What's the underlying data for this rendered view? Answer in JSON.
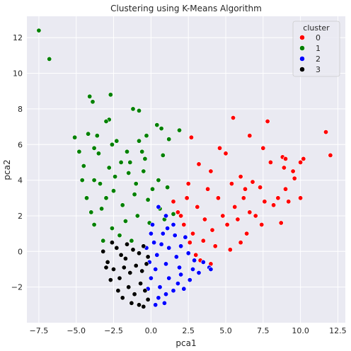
{
  "chart_data": {
    "type": "scatter",
    "title": "Clustering using K-Means Algorithm",
    "xlabel": "pca1",
    "ylabel": "pca2",
    "xlim": [
      -8.3,
      13.0
    ],
    "ylim": [
      -4.0,
      13.2
    ],
    "xticks": [
      -7.5,
      -5.0,
      -2.5,
      0.0,
      2.5,
      5.0,
      7.5,
      10.0,
      12.5
    ],
    "xtick_labels": [
      "−7.5",
      "−5.0",
      "−2.5",
      "0.0",
      "2.5",
      "5.0",
      "7.5",
      "10.0",
      "12.5"
    ],
    "yticks": [
      -2,
      0,
      2,
      4,
      6,
      8,
      10,
      12
    ],
    "ytick_labels": [
      "−2",
      "0",
      "2",
      "4",
      "6",
      "8",
      "10",
      "12"
    ],
    "grid": true,
    "background": "#eaeaf2",
    "legend": {
      "title": "cluster",
      "position": "top-right",
      "entries": [
        "0",
        "1",
        "2",
        "3"
      ]
    },
    "series": [
      {
        "name": "0",
        "color": "#ff0000",
        "points": [
          [
            2.7,
            6.4
          ],
          [
            5.5,
            7.5
          ],
          [
            6.6,
            6.5
          ],
          [
            7.8,
            7.3
          ],
          [
            11.7,
            6.7
          ],
          [
            12.0,
            5.4
          ],
          [
            4.6,
            5.8
          ],
          [
            5.0,
            5.5
          ],
          [
            7.5,
            5.8
          ],
          [
            8.8,
            5.3
          ],
          [
            9.0,
            5.2
          ],
          [
            10.2,
            5.2
          ],
          [
            10.0,
            5.0
          ],
          [
            9.5,
            4.5
          ],
          [
            8.0,
            5.0
          ],
          [
            8.9,
            4.7
          ],
          [
            9.6,
            4.1
          ],
          [
            3.2,
            4.9
          ],
          [
            2.5,
            3.8
          ],
          [
            4.0,
            4.5
          ],
          [
            6.0,
            4.2
          ],
          [
            6.8,
            3.9
          ],
          [
            7.3,
            3.6
          ],
          [
            8.5,
            3.0
          ],
          [
            9.2,
            2.8
          ],
          [
            10.0,
            3.0
          ],
          [
            9.0,
            3.5
          ],
          [
            8.2,
            2.6
          ],
          [
            8.7,
            1.6
          ],
          [
            7.4,
            1.5
          ],
          [
            6.4,
            1.0
          ],
          [
            6.0,
            0.5
          ],
          [
            5.3,
            0.1
          ],
          [
            3.3,
            -0.5
          ],
          [
            3.0,
            -0.2
          ],
          [
            4.0,
            -0.7
          ],
          [
            2.6,
            0.5
          ],
          [
            1.5,
            2.8
          ],
          [
            1.8,
            2.2
          ],
          [
            2.2,
            1.5
          ],
          [
            2.8,
            1.0
          ],
          [
            3.5,
            0.6
          ],
          [
            4.3,
            0.3
          ],
          [
            4.8,
            2.0
          ],
          [
            5.6,
            2.5
          ],
          [
            6.2,
            3.0
          ],
          [
            7.0,
            2.0
          ],
          [
            3.8,
            3.5
          ],
          [
            4.5,
            3.0
          ],
          [
            2.4,
            3.0
          ],
          [
            3.1,
            2.5
          ],
          [
            3.6,
            1.8
          ],
          [
            4.1,
            1.2
          ],
          [
            5.1,
            1.5
          ],
          [
            5.8,
            1.8
          ],
          [
            6.6,
            2.2
          ],
          [
            7.6,
            2.8
          ],
          [
            5.4,
            3.8
          ],
          [
            6.3,
            3.5
          ],
          [
            2.0,
            2.0
          ]
        ]
      },
      {
        "name": "1",
        "color": "#008000",
        "points": [
          [
            -7.5,
            12.4
          ],
          [
            -6.8,
            10.8
          ],
          [
            -4.1,
            8.7
          ],
          [
            -2.7,
            8.8
          ],
          [
            -3.9,
            8.4
          ],
          [
            -1.2,
            8.0
          ],
          [
            -0.8,
            7.9
          ],
          [
            -2.8,
            7.4
          ],
          [
            -3.0,
            7.3
          ],
          [
            0.4,
            7.1
          ],
          [
            -0.8,
            6.2
          ],
          [
            -5.1,
            6.4
          ],
          [
            -4.2,
            6.6
          ],
          [
            -3.6,
            6.5
          ],
          [
            -0.3,
            6.5
          ],
          [
            0.7,
            6.9
          ],
          [
            1.9,
            6.8
          ],
          [
            1.2,
            6.3
          ],
          [
            -4.8,
            5.6
          ],
          [
            -4.5,
            4.8
          ],
          [
            -3.5,
            5.5
          ],
          [
            -2.3,
            6.2
          ],
          [
            -1.6,
            5.6
          ],
          [
            -0.6,
            5.6
          ],
          [
            -3.8,
            4.0
          ],
          [
            -2.8,
            4.7
          ],
          [
            -1.5,
            4.4
          ],
          [
            -0.5,
            4.5
          ],
          [
            0.5,
            4.0
          ],
          [
            1.1,
            3.6
          ],
          [
            -4.3,
            3.0
          ],
          [
            -3.3,
            2.4
          ],
          [
            -2.5,
            3.4
          ],
          [
            -1.9,
            2.6
          ],
          [
            -1.1,
            3.2
          ],
          [
            -0.2,
            2.9
          ],
          [
            0.6,
            2.4
          ],
          [
            -3.8,
            1.5
          ],
          [
            -3.2,
            0.6
          ],
          [
            -2.6,
            1.3
          ],
          [
            -1.7,
            1.7
          ],
          [
            -0.9,
            2.0
          ],
          [
            -0.1,
            1.6
          ],
          [
            0.9,
            1.8
          ],
          [
            1.5,
            2.1
          ],
          [
            -2.1,
            0.9
          ],
          [
            -1.3,
            0.6
          ],
          [
            -2.4,
            4.2
          ],
          [
            -1.0,
            3.8
          ],
          [
            0.1,
            3.5
          ],
          [
            -3.0,
            3.0
          ],
          [
            -4.0,
            2.2
          ],
          [
            -2.0,
            5.0
          ],
          [
            -1.4,
            5.0
          ],
          [
            -3.4,
            3.8
          ],
          [
            -4.6,
            4.0
          ],
          [
            -0.4,
            5.2
          ],
          [
            0.8,
            5.4
          ],
          [
            -2.6,
            6.0
          ],
          [
            -3.8,
            5.8
          ]
        ]
      },
      {
        "name": "2",
        "color": "#0000ff",
        "points": [
          [
            0.5,
            2.5
          ],
          [
            1.0,
            2.0
          ],
          [
            1.5,
            1.5
          ],
          [
            0.8,
            1.0
          ],
          [
            0.2,
            0.5
          ],
          [
            1.2,
            0.2
          ],
          [
            2.0,
            0.3
          ],
          [
            1.7,
            -0.3
          ],
          [
            1.0,
            -0.7
          ],
          [
            0.3,
            -1.0
          ],
          [
            0.0,
            -1.5
          ],
          [
            0.6,
            -2.0
          ],
          [
            1.2,
            -1.5
          ],
          [
            2.0,
            -1.3
          ],
          [
            2.8,
            -1.0
          ],
          [
            3.5,
            -0.6
          ],
          [
            2.5,
            -0.1
          ],
          [
            1.5,
            -2.2
          ],
          [
            0.5,
            -2.6
          ],
          [
            -0.2,
            -2.1
          ],
          [
            -0.1,
            -0.6
          ],
          [
            0.4,
            -0.2
          ],
          [
            2.2,
            -2.1
          ],
          [
            0.9,
            -2.9
          ],
          [
            0.3,
            -3.0
          ],
          [
            3.9,
            -0.9
          ],
          [
            4.0,
            -1.0
          ],
          [
            1.6,
            0.9
          ],
          [
            1.1,
            1.3
          ],
          [
            0.1,
            1.5
          ],
          [
            0.0,
            1.0
          ],
          [
            2.3,
            0.8
          ],
          [
            2.9,
            -0.5
          ],
          [
            3.2,
            -1.2
          ],
          [
            1.8,
            -1.8
          ],
          [
            1.0,
            -2.4
          ],
          [
            -0.3,
            0.2
          ],
          [
            0.7,
            0.4
          ],
          [
            1.9,
            -0.9
          ],
          [
            2.6,
            -1.6
          ]
        ]
      },
      {
        "name": "3",
        "color": "#000000",
        "points": [
          [
            -3.2,
            0.0
          ],
          [
            -2.9,
            -0.6
          ],
          [
            -2.6,
            0.5
          ],
          [
            -2.3,
            0.2
          ],
          [
            -2.0,
            -0.2
          ],
          [
            -1.6,
            0.4
          ],
          [
            -1.2,
            0.1
          ],
          [
            -0.8,
            -0.1
          ],
          [
            -0.5,
            0.3
          ],
          [
            -0.2,
            -0.3
          ],
          [
            -2.5,
            -1.0
          ],
          [
            -2.1,
            -1.5
          ],
          [
            -1.8,
            -0.9
          ],
          [
            -1.4,
            -1.2
          ],
          [
            -1.0,
            -0.8
          ],
          [
            -0.6,
            -1.1
          ],
          [
            -0.3,
            -0.7
          ],
          [
            -2.2,
            -2.2
          ],
          [
            -1.9,
            -2.6
          ],
          [
            -1.5,
            -2.0
          ],
          [
            -1.1,
            -2.4
          ],
          [
            -0.7,
            -1.8
          ],
          [
            -0.4,
            -2.2
          ],
          [
            -1.3,
            -2.9
          ],
          [
            -0.8,
            -3.0
          ],
          [
            -0.5,
            -3.1
          ],
          [
            -0.2,
            -2.7
          ],
          [
            -2.7,
            -1.6
          ],
          [
            -3.0,
            -0.9
          ],
          [
            -1.7,
            -0.4
          ]
        ]
      }
    ]
  }
}
